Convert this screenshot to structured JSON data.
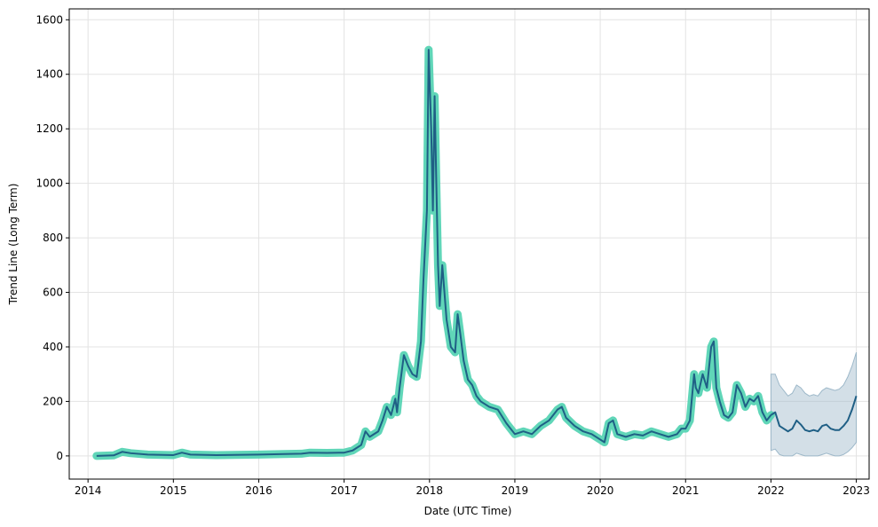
{
  "chart_data": {
    "type": "line",
    "xlabel": "Date (UTC Time)",
    "ylabel": "Trend Line (Long Term)",
    "xlim": [
      2013.78,
      2023.15
    ],
    "ylim": [
      -85,
      1640
    ],
    "x_ticks": [
      2014,
      2015,
      2016,
      2017,
      2018,
      2019,
      2020,
      2021,
      2022,
      2023
    ],
    "x_tick_labels": [
      "2014",
      "2015",
      "2016",
      "2017",
      "2018",
      "2019",
      "2020",
      "2021",
      "2022",
      "2023"
    ],
    "y_ticks": [
      0,
      200,
      400,
      600,
      800,
      1000,
      1200,
      1400,
      1600
    ],
    "y_tick_labels": [
      "0",
      "200",
      "400",
      "600",
      "800",
      "1000",
      "1200",
      "1400",
      "1600"
    ],
    "grid": true,
    "colors": {
      "actual_band": "#4fd1b0",
      "trend_line": "#1f5f85",
      "forecast_band": "#9db8c9",
      "grid": "#e3e3e3"
    },
    "series": [
      {
        "role": "observed",
        "x": [
          2014.1,
          2014.3,
          2014.4,
          2014.5,
          2014.7,
          2015.0,
          2015.1,
          2015.2,
          2015.5,
          2015.8,
          2016.0,
          2016.3,
          2016.5,
          2016.6,
          2016.8,
          2017.0,
          2017.1,
          2017.2,
          2017.25,
          2017.3,
          2017.4,
          2017.45,
          2017.5,
          2017.55,
          2017.6,
          2017.62,
          2017.65,
          2017.7,
          2017.75,
          2017.8,
          2017.85,
          2017.9,
          2017.93,
          2017.97,
          2017.99,
          2018.02,
          2018.04,
          2018.06,
          2018.08,
          2018.1,
          2018.12,
          2018.15,
          2018.2,
          2018.25,
          2018.3,
          2018.33,
          2018.36,
          2018.4,
          2018.45,
          2018.5,
          2018.55,
          2018.6,
          2018.7,
          2018.8,
          2018.9,
          2019.0,
          2019.1,
          2019.2,
          2019.3,
          2019.4,
          2019.5,
          2019.55,
          2019.6,
          2019.7,
          2019.8,
          2019.9,
          2020.0,
          2020.05,
          2020.1,
          2020.15,
          2020.2,
          2020.3,
          2020.4,
          2020.5,
          2020.6,
          2020.7,
          2020.8,
          2020.9,
          2020.95,
          2021.0,
          2021.05,
          2021.1,
          2021.12,
          2021.15,
          2021.2,
          2021.25,
          2021.3,
          2021.33,
          2021.36,
          2021.4,
          2021.45,
          2021.5,
          2021.55,
          2021.6,
          2021.65,
          2021.7,
          2021.75,
          2021.8,
          2021.85,
          2021.9,
          2021.95,
          2022.0
        ],
        "y": [
          0,
          2,
          15,
          10,
          5,
          3,
          12,
          5,
          3,
          4,
          5,
          7,
          8,
          12,
          11,
          12,
          20,
          40,
          90,
          70,
          90,
          130,
          180,
          150,
          210,
          160,
          250,
          370,
          330,
          300,
          290,
          420,
          650,
          900,
          1490,
          1200,
          900,
          1320,
          1000,
          700,
          550,
          700,
          500,
          400,
          380,
          520,
          450,
          350,
          280,
          260,
          220,
          200,
          180,
          170,
          120,
          80,
          90,
          80,
          110,
          130,
          170,
          180,
          140,
          110,
          90,
          80,
          60,
          50,
          120,
          130,
          80,
          70,
          80,
          75,
          90,
          80,
          70,
          80,
          100,
          100,
          130,
          300,
          250,
          230,
          300,
          250,
          400,
          420,
          250,
          200,
          150,
          140,
          160,
          260,
          230,
          180,
          210,
          200,
          220,
          160,
          130,
          150
        ]
      },
      {
        "role": "forecast",
        "x": [
          2022.0,
          2022.05,
          2022.1,
          2022.15,
          2022.2,
          2022.25,
          2022.3,
          2022.35,
          2022.4,
          2022.45,
          2022.5,
          2022.55,
          2022.6,
          2022.65,
          2022.7,
          2022.75,
          2022.8,
          2022.85,
          2022.9,
          2022.95,
          2023.0
        ],
        "y": [
          150,
          160,
          110,
          100,
          90,
          100,
          130,
          115,
          95,
          90,
          95,
          90,
          110,
          115,
          100,
          95,
          95,
          110,
          130,
          170,
          220
        ],
        "upper": [
          300,
          300,
          260,
          240,
          220,
          230,
          260,
          250,
          230,
          220,
          225,
          220,
          240,
          250,
          245,
          240,
          245,
          260,
          290,
          330,
          380
        ],
        "lower": [
          20,
          25,
          5,
          0,
          0,
          0,
          10,
          5,
          0,
          0,
          0,
          0,
          5,
          10,
          5,
          0,
          0,
          5,
          15,
          30,
          50
        ]
      }
    ]
  }
}
